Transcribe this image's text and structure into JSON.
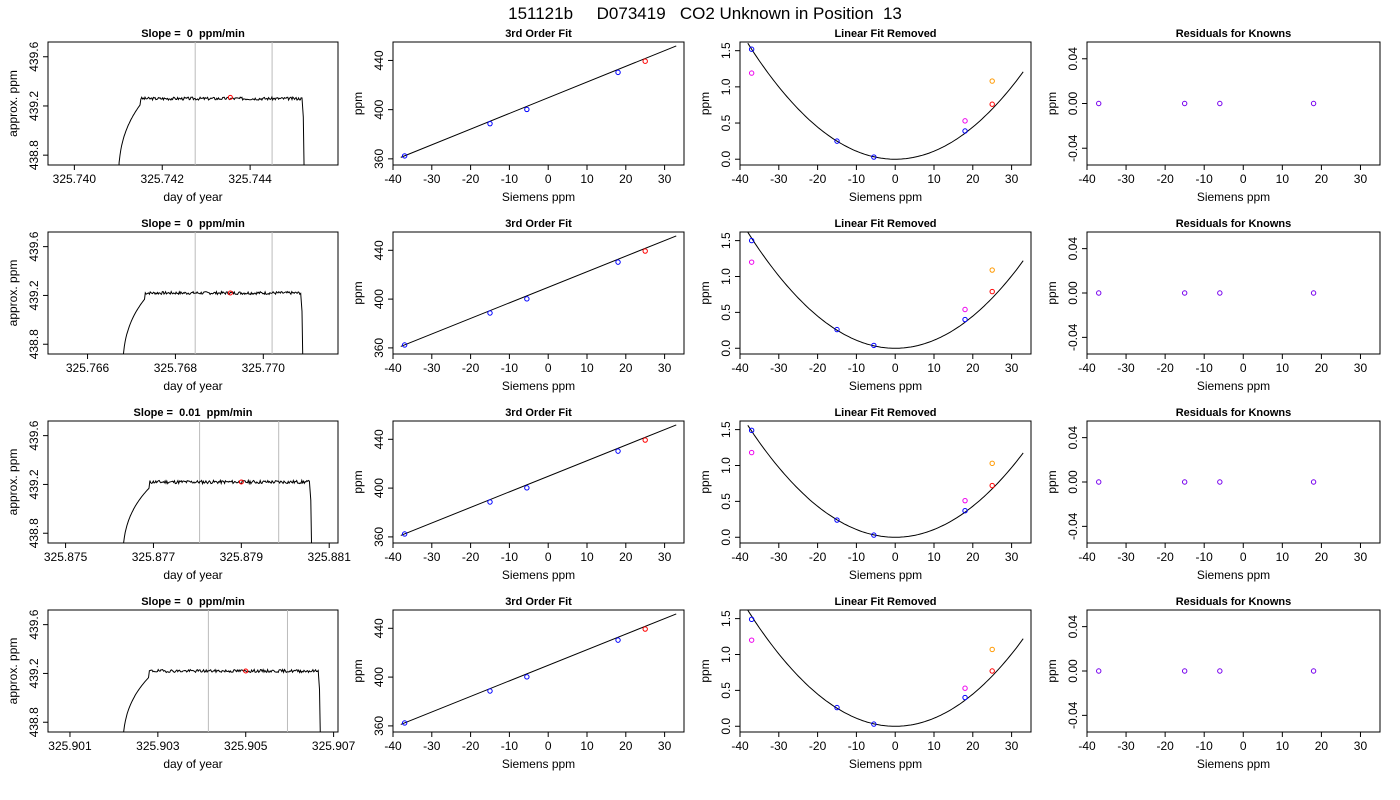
{
  "figure": {
    "title": "151121b     D073419   CO2 Unknown in Position  13"
  },
  "chart_data": [
    {
      "type": "line",
      "row": 0,
      "col": 0,
      "title": "Slope =  0  ppm/min",
      "xlabel": "day of year",
      "ylabel": "approx. ppm",
      "xlim": [
        325.7394,
        325.746
      ],
      "ylim": [
        438.72,
        439.72
      ],
      "xticks": [
        325.74,
        325.742,
        325.744
      ],
      "xtick_labels": [
        "325.740",
        "325.742",
        "325.744"
      ],
      "yticks": [
        438.8,
        439.2,
        439.6
      ],
      "ytick_labels": [
        "438.8",
        "439.2",
        "439.6"
      ],
      "vlines": [
        325.74275,
        325.7445
      ],
      "marker": {
        "x": 325.74355,
        "y": 439.27,
        "color": "#ff0000"
      },
      "trace": {
        "start_x": 325.741,
        "rise_end_x": 325.7415,
        "end_x": 325.74518,
        "level": 439.26,
        "noise": 0.012,
        "seed": 3
      }
    },
    {
      "type": "scatter",
      "row": 0,
      "col": 1,
      "title": "3rd Order Fit",
      "xlabel": "Siemens ppm",
      "ylabel": "ppm",
      "xlim": [
        -40,
        35
      ],
      "ylim": [
        355,
        455
      ],
      "xticks": [
        -40,
        -30,
        -20,
        -10,
        0,
        10,
        20,
        30
      ],
      "xtick_labels": [
        "-40",
        "-30",
        "-20",
        "-10",
        "0",
        "10",
        "20",
        "30"
      ],
      "yticks": [
        360,
        400,
        440
      ],
      "ytick_labels": [
        "360",
        "400",
        "440"
      ],
      "line": {
        "x": [
          -38,
          33
        ],
        "y": [
          361.2,
          451.8
        ]
      },
      "series": [
        {
          "color": "#0000ff",
          "x": [
            -37,
            -15,
            -5.5,
            18
          ],
          "y": [
            362.4,
            388.6,
            400.2,
            430.3
          ]
        },
        {
          "color": "#ff0000",
          "x": [
            25
          ],
          "y": [
            439.4
          ]
        }
      ]
    },
    {
      "type": "scatter",
      "row": 0,
      "col": 2,
      "title": "Linear Fit Removed",
      "xlabel": "Siemens ppm",
      "ylabel": "ppm",
      "xlim": [
        -40,
        35
      ],
      "ylim": [
        -0.08,
        1.62
      ],
      "xticks": [
        -40,
        -30,
        -20,
        -10,
        0,
        10,
        20,
        30
      ],
      "xtick_labels": [
        "-40",
        "-30",
        "-20",
        "-10",
        "0",
        "10",
        "20",
        "30"
      ],
      "yticks": [
        0.0,
        0.5,
        1.0,
        1.5
      ],
      "ytick_labels": [
        "0.0",
        "0.5",
        "1.0",
        "1.5"
      ],
      "curve": {
        "a": 0.00111,
        "x0": 0,
        "xmin": -38,
        "xmax": 33
      },
      "series": [
        {
          "color": "#0000ff",
          "x": [
            -37,
            -15,
            -5.5,
            18
          ],
          "y": [
            1.52,
            0.25,
            0.03,
            0.39
          ]
        },
        {
          "color": "#ee00ee",
          "x": [
            -37,
            18
          ],
          "y": [
            1.19,
            0.53
          ]
        },
        {
          "color": "#ff9900",
          "x": [
            25
          ],
          "y": [
            1.08
          ]
        },
        {
          "color": "#ff0000",
          "x": [
            25
          ],
          "y": [
            0.76
          ]
        }
      ]
    },
    {
      "type": "scatter",
      "row": 0,
      "col": 3,
      "title": "Residuals for Knowns",
      "xlabel": "Siemens ppm",
      "ylabel": "ppm",
      "xlim": [
        -40,
        35
      ],
      "ylim": [
        -0.055,
        0.055
      ],
      "xticks": [
        -40,
        -30,
        -20,
        -10,
        0,
        10,
        20,
        30
      ],
      "xtick_labels": [
        "-40",
        "-30",
        "-20",
        "-10",
        "0",
        "10",
        "20",
        "30"
      ],
      "yticks": [
        -0.04,
        0.0,
        0.04
      ],
      "ytick_labels": [
        "-0.04",
        "0.00",
        "0.04"
      ],
      "series": [
        {
          "color": "#7700ee",
          "x": [
            -37,
            -15,
            -6,
            18
          ],
          "y": [
            0,
            0,
            0,
            0
          ]
        }
      ]
    },
    {
      "type": "line",
      "row": 1,
      "col": 0,
      "title": "Slope =  0  ppm/min",
      "xlabel": "day of year",
      "ylabel": "approx. ppm",
      "xlim": [
        325.7651,
        325.7717
      ],
      "ylim": [
        438.72,
        439.72
      ],
      "xticks": [
        325.766,
        325.768,
        325.77
      ],
      "xtick_labels": [
        "325.766",
        "325.768",
        "325.770"
      ],
      "yticks": [
        438.8,
        439.2,
        439.6
      ],
      "ytick_labels": [
        "438.8",
        "439.2",
        "439.6"
      ],
      "vlines": [
        325.76845,
        325.7702
      ],
      "marker": {
        "x": 325.76925,
        "y": 439.22,
        "color": "#ff0000"
      },
      "trace": {
        "start_x": 325.7668,
        "rise_end_x": 325.7673,
        "end_x": 325.77085,
        "level": 439.22,
        "noise": 0.012,
        "seed": 7
      }
    },
    {
      "type": "scatter",
      "row": 1,
      "col": 1,
      "title": "3rd Order Fit",
      "xlabel": "Siemens ppm",
      "ylabel": "ppm",
      "xlim": [
        -40,
        35
      ],
      "ylim": [
        355,
        455
      ],
      "xticks": [
        -40,
        -30,
        -20,
        -10,
        0,
        10,
        20,
        30
      ],
      "xtick_labels": [
        "-40",
        "-30",
        "-20",
        "-10",
        "0",
        "10",
        "20",
        "30"
      ],
      "yticks": [
        360,
        400,
        440
      ],
      "ytick_labels": [
        "360",
        "400",
        "440"
      ],
      "line": {
        "x": [
          -38,
          33
        ],
        "y": [
          361.2,
          451.8
        ]
      },
      "series": [
        {
          "color": "#0000ff",
          "x": [
            -37,
            -15,
            -5.5,
            18
          ],
          "y": [
            362.4,
            388.6,
            400.2,
            430.3
          ]
        },
        {
          "color": "#ff0000",
          "x": [
            25
          ],
          "y": [
            439.4
          ]
        }
      ]
    },
    {
      "type": "scatter",
      "row": 1,
      "col": 2,
      "title": "Linear Fit Removed",
      "xlabel": "Siemens ppm",
      "ylabel": "ppm",
      "xlim": [
        -40,
        35
      ],
      "ylim": [
        -0.08,
        1.62
      ],
      "xticks": [
        -40,
        -30,
        -20,
        -10,
        0,
        10,
        20,
        30
      ],
      "xtick_labels": [
        "-40",
        "-30",
        "-20",
        "-10",
        "0",
        "10",
        "20",
        "30"
      ],
      "yticks": [
        0.0,
        0.5,
        1.0,
        1.5
      ],
      "ytick_labels": [
        "0.0",
        "0.5",
        "1.0",
        "1.5"
      ],
      "curve": {
        "a": 0.00112,
        "x0": 0,
        "xmin": -38,
        "xmax": 33
      },
      "series": [
        {
          "color": "#0000ff",
          "x": [
            -37,
            -15,
            -5.5,
            18
          ],
          "y": [
            1.5,
            0.26,
            0.04,
            0.4
          ]
        },
        {
          "color": "#ee00ee",
          "x": [
            -37,
            18
          ],
          "y": [
            1.2,
            0.54
          ]
        },
        {
          "color": "#ff9900",
          "x": [
            25
          ],
          "y": [
            1.09
          ]
        },
        {
          "color": "#ff0000",
          "x": [
            25
          ],
          "y": [
            0.79
          ]
        }
      ]
    },
    {
      "type": "scatter",
      "row": 1,
      "col": 3,
      "title": "Residuals for Knowns",
      "xlabel": "Siemens ppm",
      "ylabel": "ppm",
      "xlim": [
        -40,
        35
      ],
      "ylim": [
        -0.055,
        0.055
      ],
      "xticks": [
        -40,
        -30,
        -20,
        -10,
        0,
        10,
        20,
        30
      ],
      "xtick_labels": [
        "-40",
        "-30",
        "-20",
        "-10",
        "0",
        "10",
        "20",
        "30"
      ],
      "yticks": [
        -0.04,
        0.0,
        0.04
      ],
      "ytick_labels": [
        "-0.04",
        "0.00",
        "0.04"
      ],
      "series": [
        {
          "color": "#7700ee",
          "x": [
            -37,
            -15,
            -6,
            18
          ],
          "y": [
            0,
            0,
            0,
            0
          ]
        }
      ]
    },
    {
      "type": "line",
      "row": 2,
      "col": 0,
      "title": "Slope =  0.01  ppm/min",
      "xlabel": "day of year",
      "ylabel": "approx. ppm",
      "xlim": [
        325.8746,
        325.8812
      ],
      "ylim": [
        438.72,
        439.72
      ],
      "xticks": [
        325.875,
        325.877,
        325.879,
        325.881
      ],
      "xtick_labels": [
        "325.875",
        "325.877",
        "325.879",
        "325.881"
      ],
      "yticks": [
        438.8,
        439.2,
        439.6
      ],
      "ytick_labels": [
        "438.8",
        "439.2",
        "439.6"
      ],
      "vlines": [
        325.87805,
        325.87985
      ],
      "marker": {
        "x": 325.879,
        "y": 439.22,
        "color": "#ff0000"
      },
      "trace": {
        "start_x": 325.8763,
        "rise_end_x": 325.8769,
        "end_x": 325.88055,
        "level": 439.22,
        "noise": 0.014,
        "seed": 11
      }
    },
    {
      "type": "scatter",
      "row": 2,
      "col": 1,
      "title": "3rd Order Fit",
      "xlabel": "Siemens ppm",
      "ylabel": "ppm",
      "xlim": [
        -40,
        35
      ],
      "ylim": [
        355,
        455
      ],
      "xticks": [
        -40,
        -30,
        -20,
        -10,
        0,
        10,
        20,
        30
      ],
      "xtick_labels": [
        "-40",
        "-30",
        "-20",
        "-10",
        "0",
        "10",
        "20",
        "30"
      ],
      "yticks": [
        360,
        400,
        440
      ],
      "ytick_labels": [
        "360",
        "400",
        "440"
      ],
      "line": {
        "x": [
          -38,
          33
        ],
        "y": [
          361.2,
          451.8
        ]
      },
      "series": [
        {
          "color": "#0000ff",
          "x": [
            -37,
            -15,
            -5.5,
            18
          ],
          "y": [
            362.4,
            388.6,
            400.2,
            430.3
          ]
        },
        {
          "color": "#ff0000",
          "x": [
            25
          ],
          "y": [
            439.4
          ]
        }
      ]
    },
    {
      "type": "scatter",
      "row": 2,
      "col": 2,
      "title": "Linear Fit Removed",
      "xlabel": "Siemens ppm",
      "ylabel": "ppm",
      "xlim": [
        -40,
        35
      ],
      "ylim": [
        -0.08,
        1.62
      ],
      "xticks": [
        -40,
        -30,
        -20,
        -10,
        0,
        10,
        20,
        30
      ],
      "xtick_labels": [
        "-40",
        "-30",
        "-20",
        "-10",
        "0",
        "10",
        "20",
        "30"
      ],
      "yticks": [
        0.0,
        0.5,
        1.0,
        1.5
      ],
      "ytick_labels": [
        "0.0",
        "0.5",
        "1.0",
        "1.5"
      ],
      "curve": {
        "a": 0.00108,
        "x0": 0,
        "xmin": -38,
        "xmax": 33
      },
      "series": [
        {
          "color": "#0000ff",
          "x": [
            -37,
            -15,
            -5.5,
            18
          ],
          "y": [
            1.49,
            0.24,
            0.03,
            0.37
          ]
        },
        {
          "color": "#ee00ee",
          "x": [
            -37,
            18
          ],
          "y": [
            1.18,
            0.51
          ]
        },
        {
          "color": "#ff9900",
          "x": [
            25
          ],
          "y": [
            1.03
          ]
        },
        {
          "color": "#ff0000",
          "x": [
            25
          ],
          "y": [
            0.72
          ]
        }
      ]
    },
    {
      "type": "scatter",
      "row": 2,
      "col": 3,
      "title": "Residuals for Knowns",
      "xlabel": "Siemens ppm",
      "ylabel": "ppm",
      "xlim": [
        -40,
        35
      ],
      "ylim": [
        -0.055,
        0.055
      ],
      "xticks": [
        -40,
        -30,
        -20,
        -10,
        0,
        10,
        20,
        30
      ],
      "xtick_labels": [
        "-40",
        "-30",
        "-20",
        "-10",
        "0",
        "10",
        "20",
        "30"
      ],
      "yticks": [
        -0.04,
        0.0,
        0.04
      ],
      "ytick_labels": [
        "-0.04",
        "0.00",
        "0.04"
      ],
      "series": [
        {
          "color": "#7700ee",
          "x": [
            -37,
            -15,
            -6,
            18
          ],
          "y": [
            0,
            0,
            0,
            0
          ]
        }
      ]
    },
    {
      "type": "line",
      "row": 3,
      "col": 0,
      "title": "Slope =  0  ppm/min",
      "xlabel": "day of year",
      "ylabel": "approx. ppm",
      "xlim": [
        325.9005,
        325.9071
      ],
      "ylim": [
        438.72,
        439.72
      ],
      "xticks": [
        325.901,
        325.903,
        325.905,
        325.907
      ],
      "xtick_labels": [
        "325.901",
        "325.903",
        "325.905",
        "325.907"
      ],
      "yticks": [
        438.8,
        439.2,
        439.6
      ],
      "ytick_labels": [
        "438.8",
        "439.2",
        "439.6"
      ],
      "vlines": [
        325.90415,
        325.90595
      ],
      "marker": {
        "x": 325.905,
        "y": 439.22,
        "color": "#ff0000"
      },
      "trace": {
        "start_x": 325.9022,
        "rise_end_x": 325.9028,
        "end_x": 325.90665,
        "level": 439.22,
        "noise": 0.012,
        "seed": 19
      }
    },
    {
      "type": "scatter",
      "row": 3,
      "col": 1,
      "title": "3rd Order Fit",
      "xlabel": "Siemens ppm",
      "ylabel": "ppm",
      "xlim": [
        -40,
        35
      ],
      "ylim": [
        355,
        455
      ],
      "xticks": [
        -40,
        -30,
        -20,
        -10,
        0,
        10,
        20,
        30
      ],
      "xtick_labels": [
        "-40",
        "-30",
        "-20",
        "-10",
        "0",
        "10",
        "20",
        "30"
      ],
      "yticks": [
        360,
        400,
        440
      ],
      "ytick_labels": [
        "360",
        "400",
        "440"
      ],
      "line": {
        "x": [
          -38,
          33
        ],
        "y": [
          361.2,
          451.8
        ]
      },
      "series": [
        {
          "color": "#0000ff",
          "x": [
            -37,
            -15,
            -5.5,
            18
          ],
          "y": [
            362.4,
            388.6,
            400.2,
            430.3
          ]
        },
        {
          "color": "#ff0000",
          "x": [
            25
          ],
          "y": [
            439.4
          ]
        }
      ]
    },
    {
      "type": "scatter",
      "row": 3,
      "col": 2,
      "title": "Linear Fit Removed",
      "xlabel": "Siemens ppm",
      "ylabel": "ppm",
      "xlim": [
        -40,
        35
      ],
      "ylim": [
        -0.08,
        1.62
      ],
      "xticks": [
        -40,
        -30,
        -20,
        -10,
        0,
        10,
        20,
        30
      ],
      "xtick_labels": [
        "-40",
        "-30",
        "-20",
        "-10",
        "0",
        "10",
        "20",
        "30"
      ],
      "yticks": [
        0.0,
        0.5,
        1.0,
        1.5
      ],
      "ytick_labels": [
        "0.0",
        "0.5",
        "1.0",
        "1.5"
      ],
      "curve": {
        "a": 0.00112,
        "x0": 0,
        "xmin": -38,
        "xmax": 33
      },
      "series": [
        {
          "color": "#0000ff",
          "x": [
            -37,
            -15,
            -5.5,
            18
          ],
          "y": [
            1.49,
            0.26,
            0.03,
            0.4
          ]
        },
        {
          "color": "#ee00ee",
          "x": [
            -37,
            18
          ],
          "y": [
            1.2,
            0.53
          ]
        },
        {
          "color": "#ff9900",
          "x": [
            25
          ],
          "y": [
            1.07
          ]
        },
        {
          "color": "#ff0000",
          "x": [
            25
          ],
          "y": [
            0.77
          ]
        }
      ]
    },
    {
      "type": "scatter",
      "row": 3,
      "col": 3,
      "title": "Residuals for Knowns",
      "xlabel": "Siemens ppm",
      "ylabel": "ppm",
      "xlim": [
        -40,
        35
      ],
      "ylim": [
        -0.055,
        0.055
      ],
      "xticks": [
        -40,
        -30,
        -20,
        -10,
        0,
        10,
        20,
        30
      ],
      "xtick_labels": [
        "-40",
        "-30",
        "-20",
        "-10",
        "0",
        "10",
        "20",
        "30"
      ],
      "yticks": [
        -0.04,
        0.0,
        0.04
      ],
      "ytick_labels": [
        "-0.04",
        "0.00",
        "0.04"
      ],
      "series": [
        {
          "color": "#7700ee",
          "x": [
            -37,
            -15,
            -6,
            18
          ],
          "y": [
            0,
            0,
            0,
            0
          ]
        }
      ]
    }
  ]
}
